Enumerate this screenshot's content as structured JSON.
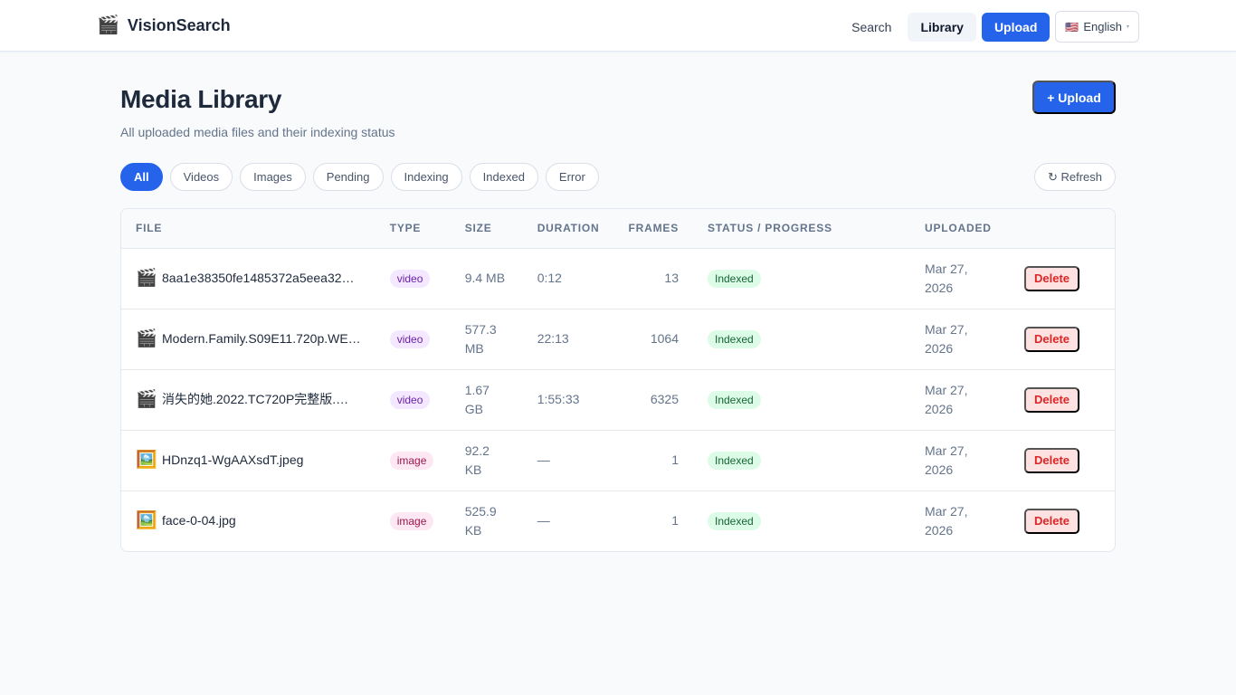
{
  "topbar": {
    "brand_icon": "🎬",
    "brand_name": "VisionSearch",
    "nav": {
      "search": "Search",
      "library": "Library",
      "upload": "Upload"
    },
    "language": {
      "flag": "🇺🇸",
      "label": "English",
      "caret": "▾"
    }
  },
  "page": {
    "title": "Media Library",
    "subtitle": "All uploaded media files and their indexing status",
    "upload_button": "+ Upload",
    "refresh_button": "↻ Refresh"
  },
  "filters": [
    "All",
    "Videos",
    "Images",
    "Pending",
    "Indexing",
    "Indexed",
    "Error"
  ],
  "table": {
    "headers": {
      "file": "FILE",
      "type": "TYPE",
      "size": "SIZE",
      "duration": "DURATION",
      "frames": "FRAMES",
      "status": "STATUS / PROGRESS",
      "uploaded": "UPLOADED"
    },
    "rows": [
      {
        "icon": "🎬",
        "name": "8aa1e38350fe1485372a5eea32…",
        "type": "video",
        "size": "9.4 MB",
        "duration": "0:12",
        "frames": "13",
        "status": "Indexed",
        "uploaded": "Mar 27, 2026",
        "action": "Delete"
      },
      {
        "icon": "🎬",
        "name": "Modern.Family.S09E11.720p.WE…",
        "type": "video",
        "size": "577.3 MB",
        "duration": "22:13",
        "frames": "1064",
        "status": "Indexed",
        "uploaded": "Mar 27, 2026",
        "action": "Delete"
      },
      {
        "icon": "🎬",
        "name": "消失的她.2022.TC720P完整版.…",
        "type": "video",
        "size": "1.67 GB",
        "duration": "1:55:33",
        "frames": "6325",
        "status": "Indexed",
        "uploaded": "Mar 27, 2026",
        "action": "Delete"
      },
      {
        "icon": "🖼️",
        "name": "HDnzq1-WgAAXsdT.jpeg",
        "type": "image",
        "size": "92.2 KB",
        "duration": "—",
        "frames": "1",
        "status": "Indexed",
        "uploaded": "Mar 27, 2026",
        "action": "Delete"
      },
      {
        "icon": "🖼️",
        "name": "face-0-04.jpg",
        "type": "image",
        "size": "525.9 KB",
        "duration": "—",
        "frames": "1",
        "status": "Indexed",
        "uploaded": "Mar 27, 2026",
        "action": "Delete"
      }
    ]
  },
  "colors": {
    "accent": "#2563eb",
    "indexed_bg": "#dcfce7",
    "indexed_fg": "#166534",
    "delete_bg": "#fee2e2",
    "delete_fg": "#dc2626",
    "video_badge": "#f3e8ff",
    "image_badge": "#fce7f3"
  }
}
